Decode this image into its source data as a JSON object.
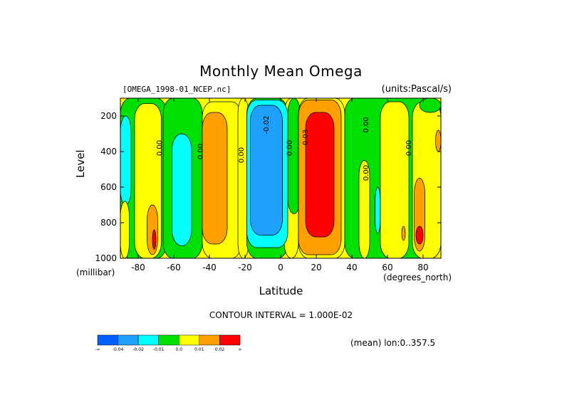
{
  "chart": {
    "title": "Monthly Mean Omega",
    "source": "[OMEGA_1998-01_NCEP.nc]",
    "units": "(units:Pascal/s)",
    "contour_interval": "CONTOUR INTERVAL = 1.000E-02",
    "mean_note": "(mean) lon:0..357.5"
  },
  "chart_data": {
    "type": "heatmap",
    "title": "Monthly Mean Omega",
    "xlabel": "Latitude",
    "xunits": "(degrees_north)",
    "ylabel": "Level",
    "yunits": "(millibar)",
    "xlim": [
      -90,
      90
    ],
    "ylim": [
      1000,
      100
    ],
    "x_ticks": [
      -80,
      -60,
      -40,
      -20,
      0,
      20,
      40,
      60,
      80
    ],
    "y_ticks": [
      200,
      400,
      600,
      800,
      1000
    ],
    "x_tick_labels": [
      "-80",
      "-60",
      "-40",
      "-20",
      "0",
      "20",
      "40",
      "60",
      "80"
    ],
    "y_tick_labels": [
      "200",
      "400",
      "600",
      "800",
      "1000"
    ],
    "contour_labels": [
      {
        "text": "0.00",
        "lat": -68,
        "lev": 380
      },
      {
        "text": "0.00",
        "lat": -45,
        "lev": 400
      },
      {
        "text": "0.00",
        "lat": -22,
        "lev": 420
      },
      {
        "text": "-0.02",
        "lat": -8,
        "lev": 250
      },
      {
        "text": "0.00",
        "lat": 5,
        "lev": 380
      },
      {
        "text": "0.03",
        "lat": 14,
        "lev": 320
      },
      {
        "text": "0.00",
        "lat": 48,
        "lev": 250
      },
      {
        "text": "0.00",
        "lat": 48,
        "lev": 520
      },
      {
        "text": "0.00",
        "lat": 72,
        "lev": 380
      }
    ],
    "colorbar": {
      "labels": [
        "-∞",
        "-0.04",
        "-0.02",
        "-0.01",
        "0.0",
        "0.01",
        "0.02",
        "∞"
      ],
      "colors": [
        "#0060ff",
        "#1ea0ff",
        "#00ffff",
        "#00e000",
        "#ffff00",
        "#ffa000",
        "#ff0000"
      ]
    },
    "regions": [
      {
        "c": "#00e000",
        "lat": [
          -90,
          -64
        ],
        "lev": [
          100,
          1000
        ]
      },
      {
        "c": "#ffff00",
        "lat": [
          -82,
          -67
        ],
        "lev": [
          130,
          1000
        ]
      },
      {
        "c": "#00e000",
        "lat": [
          -66,
          -44
        ],
        "lev": [
          100,
          1000
        ]
      },
      {
        "c": "#ffff00",
        "lat": [
          -44,
          -22
        ],
        "lev": [
          120,
          1000
        ]
      },
      {
        "c": "#00e000",
        "lat": [
          -22,
          -20
        ],
        "lev": [
          150,
          1000
        ]
      },
      {
        "c": "#ffff00",
        "lat": [
          -24,
          -18
        ],
        "lev": [
          100,
          1000
        ]
      },
      {
        "c": "#00e000",
        "lat": [
          -19,
          4
        ],
        "lev": [
          100,
          1000
        ]
      },
      {
        "c": "#ffff00",
        "lat": [
          2,
          10
        ],
        "lev": [
          100,
          1000
        ]
      },
      {
        "c": "#00e000",
        "lat": [
          4,
          11
        ],
        "lev": [
          100,
          750
        ]
      },
      {
        "c": "#ffff00",
        "lat": [
          10,
          36
        ],
        "lev": [
          100,
          1000
        ]
      },
      {
        "c": "#00e000",
        "lat": [
          36,
          90
        ],
        "lev": [
          100,
          1000
        ]
      },
      {
        "c": "#ffff00",
        "lat": [
          56,
          72
        ],
        "lev": [
          120,
          1000
        ]
      },
      {
        "c": "#ffff00",
        "lat": [
          44,
          50
        ],
        "lev": [
          450,
          1000
        ]
      },
      {
        "c": "#ffff00",
        "lat": [
          74,
          90
        ],
        "lev": [
          120,
          1000
        ]
      },
      {
        "c": "#00e000",
        "lat": [
          78,
          90
        ],
        "lev": [
          100,
          180
        ]
      },
      {
        "c": "#00ffff",
        "lat": [
          -61,
          -50
        ],
        "lev": [
          300,
          930
        ]
      },
      {
        "c": "#ffa000",
        "lat": [
          -44,
          -30
        ],
        "lev": [
          180,
          920
        ]
      },
      {
        "c": "#00ffff",
        "lat": [
          -19,
          4
        ],
        "lev": [
          110,
          940
        ]
      },
      {
        "c": "#1ea0ff",
        "lat": [
          -17,
          1
        ],
        "lev": [
          140,
          870
        ]
      },
      {
        "c": "#ffa000",
        "lat": [
          10,
          34
        ],
        "lev": [
          110,
          980
        ]
      },
      {
        "c": "#ff0000",
        "lat": [
          14,
          30
        ],
        "lev": [
          180,
          880
        ]
      },
      {
        "c": "#00ffff",
        "lat": [
          -90,
          -84
        ],
        "lev": [
          200,
          700
        ]
      },
      {
        "c": "#ffa000",
        "lat": [
          -75,
          -69
        ],
        "lev": [
          700,
          980
        ]
      },
      {
        "c": "#ff0000",
        "lat": [
          -72,
          -70
        ],
        "lev": [
          840,
          950
        ]
      },
      {
        "c": "#ffa000",
        "lat": [
          -89,
          -86
        ],
        "lev": [
          780,
          900
        ]
      },
      {
        "c": "#ff0000",
        "lat": [
          -89,
          -86
        ],
        "lev": [
          800,
          860
        ]
      },
      {
        "c": "#00ffff",
        "lat": [
          53,
          56
        ],
        "lev": [
          600,
          860
        ]
      },
      {
        "c": "#ffa000",
        "lat": [
          75,
          81
        ],
        "lev": [
          550,
          960
        ]
      },
      {
        "c": "#ff0000",
        "lat": [
          76,
          80
        ],
        "lev": [
          820,
          920
        ]
      },
      {
        "c": "#ffa000",
        "lat": [
          68,
          70
        ],
        "lev": [
          820,
          900
        ]
      },
      {
        "c": "#ffa000",
        "lat": [
          87,
          90
        ],
        "lev": [
          280,
          400
        ]
      },
      {
        "c": "#ffff00",
        "lat": [
          -90,
          -85
        ],
        "lev": [
          680,
          1000
        ]
      }
    ]
  }
}
